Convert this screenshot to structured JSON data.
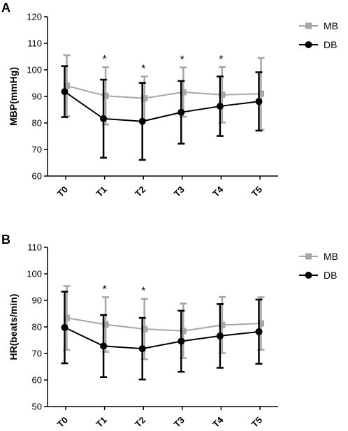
{
  "chart_data": [
    {
      "type": "line",
      "panel_label": "A",
      "ylabel": "MBP(mmHg)",
      "xlabel": "",
      "categories": [
        "T0",
        "T1",
        "T2",
        "T3",
        "T4",
        "T5"
      ],
      "ylim": [
        60,
        120
      ],
      "yticks": [
        60,
        70,
        80,
        90,
        100,
        110,
        120
      ],
      "grid": false,
      "legend_position": "top-right",
      "series": [
        {
          "name": "MB",
          "marker": "square",
          "color": "#a6a6a6",
          "values": [
            94,
            90.2,
            89.3,
            91.6,
            90.6,
            91
          ],
          "err": [
            11.5,
            10.8,
            8.2,
            9.3,
            10.5,
            13.5
          ]
        },
        {
          "name": "DB",
          "marker": "circle",
          "color": "#000000",
          "values": [
            91.8,
            81.6,
            80.6,
            84,
            86.3,
            88.1
          ],
          "err": [
            9.6,
            14.7,
            14.5,
            11.8,
            11.2,
            11
          ]
        }
      ],
      "annotations": [
        {
          "text": "*",
          "category": "T1"
        },
        {
          "text": "*",
          "category": "T2"
        },
        {
          "text": "*",
          "category": "T3"
        },
        {
          "text": "*",
          "category": "T4"
        }
      ]
    },
    {
      "type": "line",
      "panel_label": "B",
      "ylabel": "HR(beats/min)",
      "xlabel": "",
      "categories": [
        "T0",
        "T1",
        "T2",
        "T3",
        "T4",
        "T5"
      ],
      "ylim": [
        50,
        110
      ],
      "yticks": [
        50,
        60,
        70,
        80,
        90,
        100,
        110
      ],
      "grid": false,
      "legend_position": "top-right",
      "series": [
        {
          "name": "MB",
          "marker": "square",
          "color": "#a6a6a6",
          "values": [
            83.4,
            80.9,
            79.2,
            78.5,
            80.7,
            81.3
          ],
          "err": [
            12,
            10.3,
            11.4,
            10.3,
            10.6,
            9.9
          ]
        },
        {
          "name": "DB",
          "marker": "circle",
          "color": "#000000",
          "values": [
            79.8,
            72.8,
            71.8,
            74.6,
            76.6,
            78.2
          ],
          "err": [
            13.5,
            11.7,
            11.6,
            11.5,
            12,
            12.1
          ]
        }
      ],
      "annotations": [
        {
          "text": "*",
          "category": "T1"
        },
        {
          "text": "*",
          "category": "T2"
        }
      ]
    }
  ]
}
